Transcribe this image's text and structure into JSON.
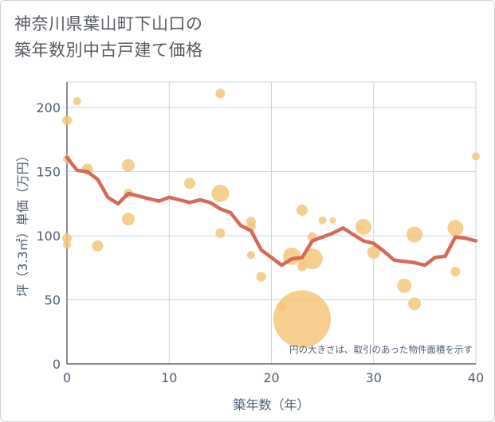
{
  "title_line1": "神奈川県葉山町下山口の",
  "title_line2": "築年数別中古戸建て価格",
  "chart_data": {
    "type": "scatter",
    "xlabel": "築年数（年）",
    "ylabel": "坪（3.3㎡）単価（万円）",
    "xlim": [
      0,
      40
    ],
    "ylim": [
      0,
      220
    ],
    "x_ticks": [
      0,
      10,
      20,
      30,
      40
    ],
    "y_ticks": [
      0,
      50,
      100,
      150,
      200
    ],
    "grid": true,
    "note": "円の大きさは、取引のあった物件面積を示す",
    "colors": {
      "bubble": "#f5c67a",
      "line": "#d46b57",
      "grid": "#c7d5e2",
      "axis": "#4e5d70"
    },
    "bubbles": [
      {
        "x": 0,
        "y": 190,
        "s": 6
      },
      {
        "x": 0,
        "y": 160,
        "s": 5
      },
      {
        "x": 0,
        "y": 98,
        "s": 6
      },
      {
        "x": 0,
        "y": 93,
        "s": 5
      },
      {
        "x": 1,
        "y": 205,
        "s": 5
      },
      {
        "x": 2,
        "y": 152,
        "s": 7
      },
      {
        "x": 3,
        "y": 92,
        "s": 7
      },
      {
        "x": 6,
        "y": 155,
        "s": 8
      },
      {
        "x": 6,
        "y": 133,
        "s": 6
      },
      {
        "x": 6,
        "y": 113,
        "s": 8
      },
      {
        "x": 12,
        "y": 141,
        "s": 7
      },
      {
        "x": 15,
        "y": 211,
        "s": 6
      },
      {
        "x": 15,
        "y": 133,
        "s": 11
      },
      {
        "x": 15,
        "y": 102,
        "s": 6
      },
      {
        "x": 18,
        "y": 111,
        "s": 6
      },
      {
        "x": 18,
        "y": 107,
        "s": 6
      },
      {
        "x": 18,
        "y": 85,
        "s": 5
      },
      {
        "x": 19,
        "y": 68,
        "s": 6
      },
      {
        "x": 21,
        "y": 45,
        "s": 6
      },
      {
        "x": 22,
        "y": 84,
        "s": 11
      },
      {
        "x": 23,
        "y": 35,
        "s": 36
      },
      {
        "x": 23,
        "y": 120,
        "s": 7
      },
      {
        "x": 23,
        "y": 80,
        "s": 5
      },
      {
        "x": 23,
        "y": 76,
        "s": 6
      },
      {
        "x": 24,
        "y": 99,
        "s": 6
      },
      {
        "x": 24,
        "y": 82,
        "s": 13
      },
      {
        "x": 25,
        "y": 112,
        "s": 5
      },
      {
        "x": 26,
        "y": 112,
        "s": 4
      },
      {
        "x": 29,
        "y": 107,
        "s": 10
      },
      {
        "x": 30,
        "y": 87,
        "s": 8
      },
      {
        "x": 33,
        "y": 61,
        "s": 9
      },
      {
        "x": 34,
        "y": 101,
        "s": 10
      },
      {
        "x": 34,
        "y": 47,
        "s": 8
      },
      {
        "x": 38,
        "y": 106,
        "s": 10
      },
      {
        "x": 38,
        "y": 72,
        "s": 6
      },
      {
        "x": 40,
        "y": 162,
        "s": 5
      }
    ],
    "line": {
      "x": [
        0,
        1,
        2,
        3,
        4,
        5,
        6,
        7,
        8,
        9,
        10,
        11,
        12,
        13,
        14,
        15,
        16,
        17,
        18,
        19,
        20,
        21,
        22,
        23,
        24,
        25,
        26,
        27,
        28,
        29,
        30,
        31,
        32,
        33,
        34,
        35,
        36,
        37,
        38,
        39,
        40
      ],
      "y": [
        161,
        151,
        150,
        144,
        130,
        125,
        133,
        131,
        129,
        127,
        130,
        128,
        126,
        128,
        126,
        121,
        118,
        108,
        104,
        89,
        83,
        77,
        82,
        83,
        96,
        99,
        102,
        106,
        101,
        96,
        94,
        88,
        81,
        80,
        79,
        77,
        83,
        84,
        99,
        98,
        96
      ]
    }
  }
}
